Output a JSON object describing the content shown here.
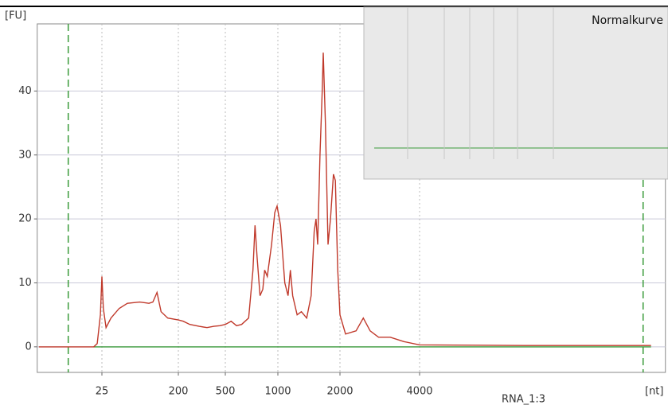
{
  "chart_data": {
    "type": "line",
    "y_label": "[FU]",
    "x_label": "[nt]",
    "sample": "RNA_1:3",
    "inset_title": "Normalkurve",
    "x": [
      4.5,
      10,
      20,
      22,
      24,
      25,
      26,
      28,
      32,
      40,
      50,
      70,
      90,
      100,
      112,
      125,
      150,
      200,
      220,
      250,
      300,
      350,
      400,
      450,
      500,
      540,
      580,
      620,
      680,
      720,
      740,
      760,
      790,
      820,
      840,
      870,
      920,
      960,
      990,
      1030,
      1080,
      1120,
      1150,
      1180,
      1240,
      1300,
      1380,
      1450,
      1500,
      1530,
      1560,
      1600,
      1640,
      1660,
      1700,
      1750,
      1800,
      1860,
      1900,
      1950,
      2000,
      2100,
      2300,
      2450,
      2600,
      2800,
      3100,
      3500,
      4000,
      10000,
      30000
    ],
    "series": [
      {
        "color": "#c0392b",
        "values": [
          0,
          0,
          0,
          0.5,
          5,
          11,
          6,
          3,
          4.5,
          6,
          6.8,
          7,
          6.8,
          7,
          8.5,
          5.5,
          4.5,
          4.2,
          4,
          3.5,
          3.2,
          3,
          3.2,
          3.3,
          3.5,
          4,
          3.3,
          3.5,
          4.5,
          12,
          19,
          14,
          8,
          9,
          12,
          11,
          16,
          21,
          22,
          19,
          10,
          8,
          12,
          8,
          5,
          5.5,
          4.5,
          8,
          18,
          20,
          16,
          30,
          40,
          46,
          35,
          16,
          20,
          27,
          26,
          12,
          5,
          2,
          2.5,
          4.5,
          2.5,
          1.5,
          1.5,
          0.8,
          0.3,
          0.2,
          0.2
        ]
      },
      {
        "color": "#3a9a3a",
        "values": [
          null,
          null,
          0,
          0,
          0,
          0,
          0,
          0,
          0,
          0,
          0,
          0,
          0,
          0,
          0,
          0,
          0,
          0,
          0,
          0,
          0,
          0,
          0,
          0,
          0,
          0,
          0,
          0,
          0,
          0,
          0,
          0,
          0,
          0,
          0,
          0,
          0,
          0,
          0,
          0,
          0,
          0,
          0,
          0,
          0,
          0,
          0,
          0,
          0,
          0,
          0,
          0,
          0,
          0,
          0,
          0,
          0,
          0,
          0,
          0,
          0,
          0,
          0,
          0,
          0,
          0,
          0,
          0,
          0,
          0,
          0
        ]
      }
    ],
    "markers": [
      10,
      28000
    ],
    "marker_color": "#3a9a3a",
    "xlim": [
      4.3,
      34000
    ],
    "xticks": [
      25,
      200,
      500,
      1000,
      2000,
      4000
    ],
    "ylim": [
      -4,
      50.5
    ],
    "yticks": [
      0,
      10,
      20,
      30,
      40
    ],
    "grid": true
  }
}
